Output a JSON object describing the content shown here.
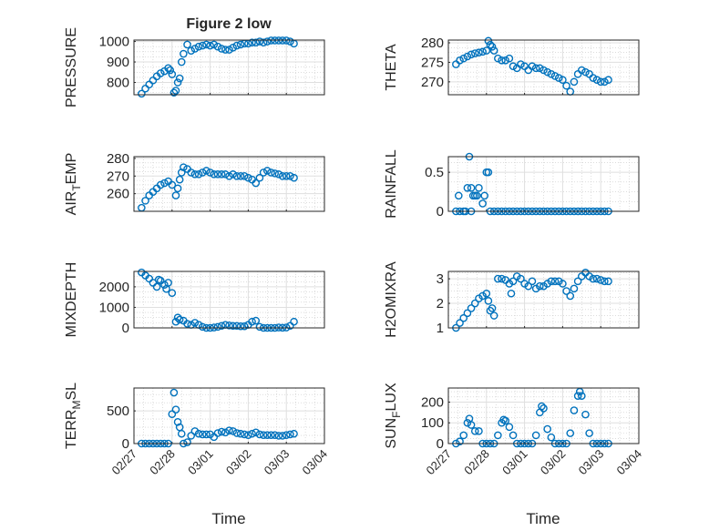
{
  "title": "Figure 2 low",
  "colors": {
    "marker": "#0072BD",
    "axis": "#262626",
    "grid": "#dfdfdf",
    "minor_grid": "#c8c8c8"
  },
  "chart_data": {
    "type": "scatter",
    "marker": "open-circle",
    "xlabel": "Time",
    "xlim": [
      0,
      5
    ],
    "xtick_values": [
      0,
      1,
      2,
      3,
      4,
      5
    ],
    "xtick_labels": [
      "02/27",
      "02/28",
      "03/01",
      "03/02",
      "03/03",
      "03/04"
    ],
    "x_note": "x in days since 02/27 00:00",
    "x": [
      0.2,
      0.3,
      0.4,
      0.5,
      0.6,
      0.7,
      0.8,
      0.9,
      1.0,
      1.1,
      1.2,
      1.3,
      1.4,
      1.5,
      1.6,
      1.7,
      1.8,
      1.9,
      2.0,
      2.1,
      2.2,
      2.3,
      2.4,
      2.5,
      2.6,
      2.7,
      2.8,
      2.9,
      3.0,
      3.1,
      3.2,
      3.3,
      3.4,
      3.5,
      3.6,
      3.7,
      3.8,
      3.9,
      4.0,
      4.1,
      4.2
    ],
    "panels": [
      {
        "ylabel": [
          "PRESSURE"
        ],
        "ylim": [
          740,
          1007
        ],
        "yticks": [
          800,
          900,
          1000
        ],
        "yticklabels": [
          "800",
          "900",
          "1000"
        ],
        "y": [
          745,
          770,
          790,
          810,
          830,
          845,
          855,
          870,
          840,
          760,
          820,
          940,
          985,
          955,
          965,
          975,
          980,
          985,
          980,
          985,
          975,
          965,
          960,
          960,
          970,
          980,
          985,
          990,
          990,
          995,
          995,
          1000,
          995,
          1000,
          1005,
          1005,
          1005,
          1005,
          1005,
          1000,
          990
        ],
        "extra": [
          [
            1.05,
            750
          ],
          [
            1.15,
            800
          ],
          [
            1.25,
            900
          ],
          [
            0.95,
            860
          ]
        ]
      },
      {
        "ylabel": [
          "THETA"
        ],
        "ylim": [
          266.7,
          280.7
        ],
        "yticks": [
          270,
          275,
          280
        ],
        "yticklabels": [
          "270",
          "275",
          "280"
        ],
        "y": [
          274.5,
          275.5,
          276,
          276.5,
          277,
          277.3,
          277.5,
          277.7,
          278,
          279.5,
          278,
          276,
          275.5,
          275.5,
          276,
          274,
          273.5,
          274.5,
          274,
          273,
          274,
          273.5,
          273.5,
          273,
          272.5,
          272,
          271.5,
          271,
          270.5,
          269,
          267.5,
          270,
          272,
          273,
          272.5,
          272,
          271,
          270.5,
          270,
          270,
          270.5
        ],
        "extra": [
          [
            1.05,
            280.5
          ],
          [
            1.15,
            279
          ]
        ]
      },
      {
        "ylabel": [
          "AIR",
          "T",
          "EMP"
        ],
        "ylim": [
          250,
          281
        ],
        "yticks": [
          260,
          270,
          280
        ],
        "yticklabels": [
          "260",
          "270",
          "280"
        ],
        "y": [
          252,
          256,
          259,
          261,
          263,
          265,
          266,
          267,
          265,
          259,
          268,
          275,
          274,
          272,
          271,
          271,
          272,
          273,
          272,
          271,
          271,
          271,
          271,
          270,
          271,
          270,
          270,
          270,
          269,
          268,
          266,
          269,
          272,
          273,
          272,
          271.5,
          271,
          270,
          270,
          270,
          269
        ],
        "extra": [
          [
            1.15,
            263
          ],
          [
            1.25,
            272
          ]
        ]
      },
      {
        "ylabel": [
          "RAINFALL"
        ],
        "ylim": [
          0,
          0.7
        ],
        "yticks": [
          0,
          0.5
        ],
        "yticklabels": [
          "0",
          "0.5"
        ],
        "y": [
          0,
          0,
          0,
          0.3,
          0.3,
          0.2,
          0.3,
          0.1,
          0.5,
          0,
          0,
          0,
          0,
          0,
          0,
          0,
          0,
          0,
          0,
          0,
          0,
          0,
          0,
          0,
          0,
          0,
          0,
          0,
          0,
          0,
          0,
          0,
          0,
          0,
          0,
          0,
          0,
          0,
          0,
          0,
          0
        ],
        "extra": [
          [
            0.27,
            0.2
          ],
          [
            0.55,
            0.7
          ],
          [
            0.45,
            0
          ],
          [
            0.6,
            0
          ],
          [
            0.65,
            0.2
          ],
          [
            0.75,
            0.2
          ],
          [
            0.95,
            0.2
          ],
          [
            1.05,
            0.5
          ]
        ]
      },
      {
        "ylabel": [
          "MIXDEPTH"
        ],
        "ylim": [
          0,
          2750
        ],
        "yticks": [
          0,
          1000,
          2000
        ],
        "yticklabels": [
          "0",
          "1000",
          "2000"
        ],
        "y": [
          2700,
          2550,
          2400,
          2200,
          2000,
          2300,
          2100,
          2200,
          1700,
          300,
          400,
          350,
          200,
          150,
          250,
          150,
          50,
          0,
          0,
          20,
          50,
          100,
          150,
          120,
          100,
          100,
          80,
          80,
          150,
          300,
          350,
          50,
          0,
          0,
          0,
          0,
          20,
          10,
          20,
          100,
          300
        ],
        "extra": [
          [
            0.65,
            2350
          ],
          [
            0.85,
            1900
          ],
          [
            1.15,
            500
          ]
        ]
      },
      {
        "ylabel": [
          "H2OMIXRA"
        ],
        "ylim": [
          1,
          3.3
        ],
        "yticks": [
          1,
          2,
          3
        ],
        "yticklabels": [
          "1",
          "2",
          "3"
        ],
        "y": [
          1.0,
          1.2,
          1.4,
          1.6,
          1.8,
          2.0,
          2.2,
          2.3,
          2.4,
          1.7,
          1.5,
          3.0,
          3.0,
          2.95,
          2.8,
          2.9,
          3.1,
          3.0,
          2.8,
          2.7,
          2.9,
          2.6,
          2.7,
          2.7,
          2.8,
          2.9,
          2.9,
          2.9,
          2.8,
          2.5,
          2.3,
          2.6,
          2.9,
          3.1,
          3.25,
          3.1,
          3.0,
          3.0,
          2.95,
          2.9,
          2.9
        ],
        "extra": [
          [
            1.05,
            2.1
          ],
          [
            1.15,
            1.8
          ],
          [
            1.65,
            2.4
          ]
        ]
      },
      {
        "ylabel": [
          "TERR",
          "M",
          "SL"
        ],
        "ylim": [
          0,
          850
        ],
        "yticks": [
          0,
          500
        ],
        "yticklabels": [
          "0",
          "500"
        ],
        "y": [
          0,
          0,
          0,
          0,
          0,
          0,
          0,
          0,
          450,
          520,
          250,
          0,
          20,
          120,
          190,
          150,
          140,
          140,
          140,
          100,
          160,
          180,
          170,
          200,
          190,
          160,
          150,
          140,
          130,
          150,
          170,
          140,
          130,
          130,
          130,
          130,
          120,
          120,
          130,
          140,
          150
        ],
        "extra": [
          [
            1.05,
            780
          ],
          [
            1.15,
            330
          ],
          [
            1.25,
            150
          ]
        ]
      },
      {
        "ylabel": [
          "SUN",
          "F",
          "LUX"
        ],
        "ylim": [
          0,
          268
        ],
        "yticks": [
          0,
          100,
          200
        ],
        "yticklabels": [
          "0",
          "100",
          "200"
        ],
        "y": [
          0,
          10,
          40,
          100,
          90,
          60,
          60,
          0,
          0,
          0,
          0,
          40,
          100,
          110,
          80,
          40,
          0,
          0,
          0,
          0,
          0,
          40,
          150,
          170,
          70,
          30,
          0,
          0,
          0,
          0,
          50,
          160,
          230,
          230,
          140,
          50,
          0,
          0,
          0,
          0,
          0
        ],
        "extra": [
          [
            0.55,
            120
          ],
          [
            1.45,
            115
          ],
          [
            2.45,
            180
          ],
          [
            3.45,
            250
          ]
        ]
      }
    ]
  }
}
